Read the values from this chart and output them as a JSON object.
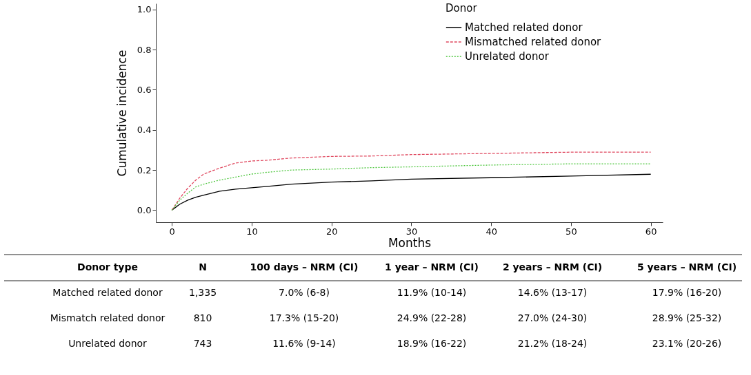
{
  "chart_data": {
    "type": "line",
    "xlabel": "Months",
    "ylabel": "Cumulative incidence",
    "legend_title": "Donor",
    "legend": "top right",
    "grid": false,
    "marker": "none",
    "xlim": [
      -2,
      61.5
    ],
    "ylim": [
      -0.06,
      1.03
    ],
    "xticks": [
      0,
      10,
      20,
      30,
      40,
      50,
      60
    ],
    "yticks": [
      {
        "value": 0,
        "label": "0.0"
      },
      0.2,
      0.4,
      0.6,
      0.8,
      {
        "value": 1,
        "label": "1.0"
      }
    ],
    "x": [
      0,
      1,
      2,
      3,
      4,
      6,
      8,
      10,
      12,
      15,
      20,
      25,
      30,
      40,
      50,
      60
    ],
    "series": [
      {
        "name": "Matched related donor",
        "color": "#000000",
        "line_style": "solid",
        "values": [
          0,
          0.03,
          0.05,
          0.065,
          0.075,
          0.095,
          0.105,
          0.112,
          0.119,
          0.13,
          0.14,
          0.146,
          0.155,
          0.162,
          0.17,
          0.179
        ]
      },
      {
        "name": "Mismatched related donor",
        "color": "#e0485f",
        "line_style": "dashed",
        "values": [
          0,
          0.06,
          0.11,
          0.15,
          0.18,
          0.21,
          0.235,
          0.245,
          0.249,
          0.26,
          0.268,
          0.27,
          0.277,
          0.283,
          0.289,
          0.289
        ]
      },
      {
        "name": "Unrelated donor",
        "color": "#4cc63c",
        "line_style": "dotted",
        "values": [
          0,
          0.05,
          0.085,
          0.116,
          0.13,
          0.15,
          0.165,
          0.18,
          0.189,
          0.2,
          0.205,
          0.212,
          0.216,
          0.225,
          0.231,
          0.231
        ]
      }
    ],
    "annotations": [
      "Donor type",
      "N",
      "100 days – NRM (CI)",
      "1 year – NRM (CI)",
      "2 years – NRM (CI)",
      "5 years – NRM (CI)",
      "Matched related donor",
      "1,335",
      "7.0% (6-8)",
      "11.9% (10-14)",
      "14.6% (13-17)",
      "17.9% (16-20)",
      "Mismatch related donor",
      "810",
      "17.3% (15-20)",
      "24.9% (22-28)",
      "27.0% (24-30)",
      "28.9% (25-32)",
      "Unrelated donor",
      "743",
      "11.6% (9-14)",
      "18.9% (16-22)",
      "21.2% (18-24)",
      "23.1% (20-26)"
    ]
  }
}
